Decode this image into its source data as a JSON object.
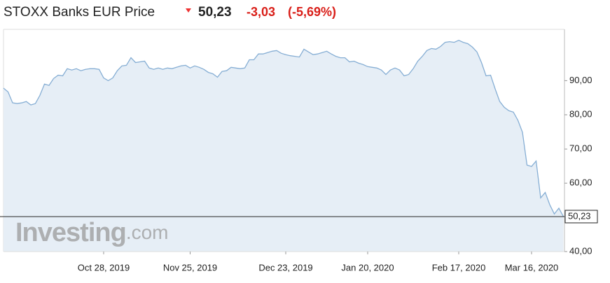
{
  "header": {
    "title": "STOXX Banks EUR Price",
    "price": "50,23",
    "change": "-3,03",
    "change_pct": "(-5,69%)"
  },
  "chart_data": {
    "type": "area",
    "watermark": {
      "brand": "Investing",
      "suffix": ".com"
    },
    "current_label": "50,23",
    "categories": [
      null,
      null,
      null,
      null,
      null,
      null,
      null,
      null,
      null,
      null,
      null,
      null,
      null,
      null,
      null,
      null,
      null,
      null,
      null,
      null,
      null,
      null,
      "Oct 28, 2019",
      null,
      null,
      null,
      null,
      null,
      null,
      null,
      null,
      null,
      null,
      null,
      null,
      null,
      null,
      null,
      null,
      null,
      null,
      "Nov 25, 2019",
      null,
      null,
      null,
      null,
      null,
      null,
      null,
      null,
      null,
      null,
      null,
      null,
      null,
      null,
      null,
      null,
      null,
      null,
      null,
      null,
      "Dec 23, 2019",
      null,
      null,
      null,
      null,
      null,
      null,
      null,
      null,
      null,
      null,
      null,
      null,
      null,
      null,
      null,
      null,
      null,
      "Jan 20, 2020",
      null,
      null,
      null,
      null,
      null,
      null,
      null,
      null,
      null,
      null,
      null,
      null,
      null,
      null,
      null,
      null,
      null,
      null,
      null,
      "Feb 17, 2020",
      null,
      null,
      null,
      null,
      null,
      null,
      null,
      null,
      null,
      null,
      null,
      null,
      null,
      null,
      null,
      "Mar 16, 2020",
      null,
      null,
      null,
      null,
      null,
      null,
      null
    ],
    "series": [
      {
        "name": "STOXX Banks EUR",
        "color": "#86aed4",
        "fill": "#e6eef6",
        "values": [
          87.8,
          86.7,
          83.5,
          83.3,
          83.5,
          83.9,
          82.9,
          83.3,
          85.7,
          89.0,
          88.6,
          90.6,
          91.6,
          91.4,
          93.5,
          93.1,
          93.5,
          92.9,
          93.3,
          93.5,
          93.5,
          93.3,
          90.8,
          90.0,
          90.8,
          92.9,
          94.3,
          94.5,
          96.7,
          95.3,
          95.5,
          95.7,
          93.7,
          93.3,
          93.7,
          93.3,
          93.7,
          93.5,
          93.9,
          94.3,
          94.5,
          93.7,
          94.3,
          93.9,
          93.3,
          92.4,
          92.0,
          91.0,
          92.7,
          92.9,
          93.9,
          93.7,
          93.5,
          93.7,
          96.1,
          96.1,
          97.8,
          97.8,
          98.2,
          98.6,
          98.8,
          98.0,
          97.6,
          97.3,
          97.1,
          96.9,
          99.2,
          98.4,
          97.6,
          97.8,
          98.2,
          98.6,
          97.8,
          97.1,
          96.7,
          96.7,
          95.5,
          95.7,
          95.1,
          94.7,
          94.1,
          93.9,
          93.7,
          93.1,
          91.8,
          93.1,
          93.7,
          93.1,
          91.4,
          91.8,
          93.5,
          95.7,
          97.1,
          98.8,
          99.4,
          99.2,
          100.0,
          101.2,
          101.4,
          101.2,
          101.8,
          101.2,
          100.8,
          99.8,
          98.4,
          95.3,
          91.4,
          91.6,
          87.6,
          83.9,
          82.2,
          81.2,
          80.8,
          78.4,
          74.9,
          65.3,
          64.9,
          66.5,
          55.7,
          57.3,
          53.7,
          51.0,
          52.7,
          50.23
        ]
      }
    ],
    "ylim": [
      40,
      105
    ],
    "yticks": [
      {
        "value": 40,
        "label": "40,00"
      },
      {
        "value": 60,
        "label": "60,00"
      },
      {
        "value": 70,
        "label": "70,00"
      },
      {
        "value": 80,
        "label": "80,00"
      },
      {
        "value": 90,
        "label": "90,00"
      }
    ],
    "grid": false
  }
}
